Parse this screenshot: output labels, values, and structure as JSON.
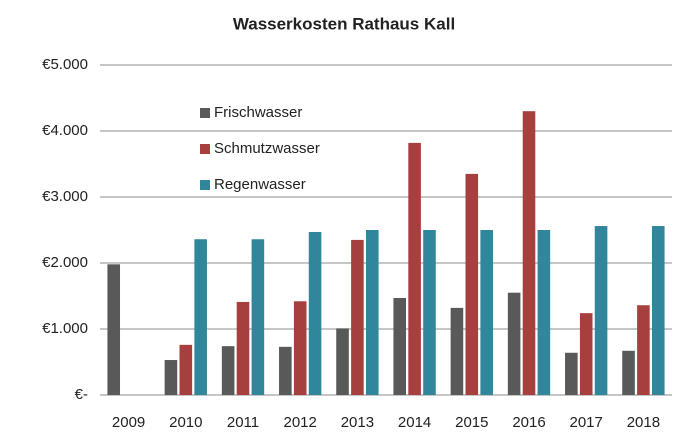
{
  "chart_data": {
    "type": "bar",
    "title": "Wasserkosten Rathaus Kall",
    "categories": [
      "2009",
      "2010",
      "2011",
      "2012",
      "2013",
      "2014",
      "2015",
      "2016",
      "2017",
      "2018"
    ],
    "series": [
      {
        "name": "Frischwasser",
        "color": "#595959",
        "values": [
          1980,
          530,
          740,
          730,
          1010,
          1470,
          1320,
          1550,
          640,
          670
        ]
      },
      {
        "name": "Schmutzwasser",
        "color": "#a5403e",
        "values": [
          0,
          760,
          1410,
          1420,
          2350,
          3820,
          3350,
          4300,
          1240,
          1360
        ]
      },
      {
        "name": "Regenwasser",
        "color": "#31869b",
        "values": [
          0,
          2360,
          2360,
          2470,
          2500,
          2500,
          2500,
          2500,
          2560,
          2560
        ]
      }
    ],
    "ylim": [
      0,
      5000
    ],
    "yticks": [
      {
        "value": 0,
        "label": "€-"
      },
      {
        "value": 1000,
        "label": "€1.000"
      },
      {
        "value": 2000,
        "label": "€2.000"
      },
      {
        "value": 3000,
        "label": "€3.000"
      },
      {
        "value": 4000,
        "label": "€4.000"
      },
      {
        "value": 5000,
        "label": "€5.000"
      }
    ],
    "grid": true,
    "legend": "upper left"
  }
}
